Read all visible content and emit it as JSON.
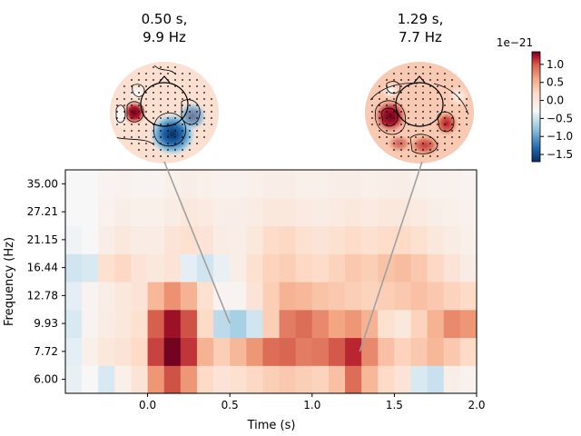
{
  "chart_data": {
    "type": "heatmap",
    "xlabel": "Time (s)",
    "ylabel": "Frequency (Hz)",
    "xlim": [
      -0.5,
      2.0
    ],
    "x_ticks": [
      0.0,
      0.5,
      1.0,
      1.5,
      2.0
    ],
    "x_tick_labels": [
      "0.0",
      "0.5",
      "1.0",
      "1.5",
      "2.0"
    ],
    "y_tick_labels": [
      "6.00",
      "7.72",
      "9.93",
      "12.78",
      "16.44",
      "21.15",
      "27.21",
      "35.00"
    ],
    "time_bin_centers": [
      -0.45,
      -0.35,
      -0.25,
      -0.15,
      -0.05,
      0.05,
      0.15,
      0.25,
      0.35,
      0.45,
      0.55,
      0.65,
      0.75,
      0.85,
      0.95,
      1.05,
      1.15,
      1.25,
      1.35,
      1.45,
      1.55,
      1.65,
      1.75,
      1.85,
      1.95
    ],
    "rows": [
      {
        "freq": "35.00",
        "values": [
          0.0,
          0.0,
          0.02,
          0.03,
          0.02,
          0.02,
          0.04,
          0.05,
          0.04,
          0.03,
          0.03,
          0.04,
          0.05,
          0.05,
          0.04,
          0.04,
          0.05,
          0.05,
          0.04,
          0.05,
          0.05,
          0.04,
          0.03,
          0.03,
          0.02
        ]
      },
      {
        "freq": "27.21",
        "values": [
          0.0,
          0.0,
          0.03,
          0.05,
          0.04,
          0.04,
          0.06,
          0.08,
          0.07,
          0.05,
          0.05,
          0.06,
          0.08,
          0.08,
          0.07,
          0.06,
          0.07,
          0.08,
          0.07,
          0.08,
          0.08,
          0.07,
          0.05,
          0.04,
          0.03
        ]
      },
      {
        "freq": "21.15",
        "values": [
          -0.02,
          0.0,
          0.05,
          0.08,
          0.06,
          0.06,
          0.1,
          0.12,
          0.1,
          0.06,
          0.05,
          0.08,
          0.14,
          0.16,
          0.12,
          0.1,
          0.12,
          0.14,
          0.12,
          0.14,
          0.15,
          0.12,
          0.08,
          0.06,
          0.04
        ]
      },
      {
        "freq": "16.44",
        "values": [
          -0.1,
          -0.08,
          0.12,
          0.16,
          0.1,
          0.08,
          0.1,
          -0.05,
          -0.1,
          -0.04,
          0.05,
          0.12,
          0.18,
          0.2,
          0.16,
          0.14,
          0.18,
          0.22,
          0.2,
          0.24,
          0.26,
          0.22,
          0.16,
          0.1,
          0.06
        ]
      },
      {
        "freq": "12.78",
        "values": [
          -0.05,
          0.02,
          0.05,
          0.08,
          0.1,
          0.28,
          0.42,
          0.3,
          0.12,
          0.02,
          0.02,
          0.1,
          0.2,
          0.3,
          0.28,
          0.24,
          0.22,
          0.2,
          0.18,
          0.2,
          0.22,
          0.25,
          0.22,
          0.18,
          0.15
        ]
      },
      {
        "freq": "9.93",
        "values": [
          -0.08,
          0.02,
          0.06,
          0.08,
          0.12,
          0.6,
          0.95,
          0.65,
          0.15,
          -0.15,
          -0.2,
          -0.1,
          0.2,
          0.5,
          0.55,
          0.45,
          0.35,
          0.4,
          0.3,
          0.12,
          0.08,
          0.18,
          0.3,
          0.45,
          0.4
        ]
      },
      {
        "freq": "7.72",
        "values": [
          -0.05,
          0.04,
          0.08,
          0.1,
          0.15,
          0.7,
          1.15,
          0.75,
          0.3,
          0.2,
          0.28,
          0.4,
          0.55,
          0.58,
          0.5,
          0.52,
          0.62,
          0.8,
          0.45,
          0.25,
          0.18,
          0.22,
          0.28,
          0.22,
          0.15
        ]
      },
      {
        "freq": "6.00",
        "values": [
          -0.04,
          0.0,
          -0.08,
          0.04,
          0.1,
          0.4,
          0.65,
          0.4,
          0.15,
          0.1,
          0.12,
          0.16,
          0.2,
          0.22,
          0.2,
          0.18,
          0.25,
          0.55,
          0.28,
          0.15,
          0.1,
          -0.08,
          -0.12,
          0.05,
          0.03
        ]
      }
    ],
    "colorbar": {
      "exponent_label": "1e−21",
      "range": [
        -1.7,
        1.35
      ],
      "ticks": [
        1.0,
        0.5,
        0.0,
        -0.5,
        -1.0,
        -1.5
      ],
      "tick_labels": [
        "1.0",
        "0.5",
        "0.0",
        "−0.5",
        "−1.0",
        "−1.5"
      ]
    },
    "topomaps": [
      {
        "time": 0.5,
        "freq": 9.93,
        "title_line1": "0.50 s,",
        "title_line2": "9.9 Hz"
      },
      {
        "time": 1.29,
        "freq": 7.72,
        "title_line1": "1.29 s,",
        "title_line2": "7.7 Hz"
      }
    ]
  },
  "colors": {
    "line": "#a0a0a0",
    "frame": "#000000",
    "neutral": "#f5f5f5"
  }
}
